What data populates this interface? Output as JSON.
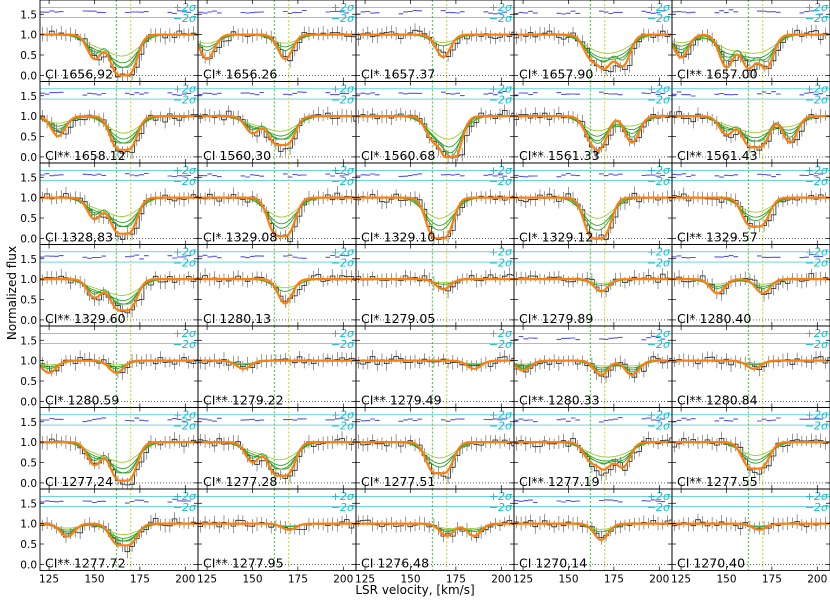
{
  "figure": {
    "ylabel": "Normalized flux",
    "xlabel": "LSR velocity, [km/s]"
  },
  "chart_data": {
    "type": "line",
    "layout": "small-multiples grid, 7 rows x 5 columns",
    "xlim": [
      120,
      207
    ],
    "ylim": [
      -0.15,
      1.85
    ],
    "x_ticks": [
      125,
      150,
      175,
      200
    ],
    "y_ticks": [
      0.0,
      0.5,
      1.0,
      1.5
    ],
    "y_tick_labels": [
      "0.0",
      "0.5",
      "1.0",
      "1.5"
    ],
    "sigma_labels": [
      "+2σ",
      "−2σ"
    ],
    "reference_velocities": [
      162,
      170
    ],
    "colors": {
      "data": "#222222",
      "errorbar": "#555555",
      "total_model": "#ff7f0e",
      "components": "#2ca02c",
      "components_light": "#9acd32",
      "residuals": "#5555ee",
      "sigma_band": "#17becf",
      "ref_line_1": "#2ca02c",
      "ref_line_2": "#bcbd22"
    },
    "panels": [
      {
        "label": "CI 1656.92",
        "lines": [
          150,
          162,
          170
        ],
        "depth": 0.85
      },
      {
        "label": "CI* 1656.26",
        "lines": [
          125,
          168
        ],
        "depth": 0.6
      },
      {
        "label": "CI* 1657.37",
        "lines": [
          168
        ],
        "depth": 0.55
      },
      {
        "label": "CI* 1657.90",
        "lines": [
          162,
          170,
          180
        ],
        "depth": 0.75
      },
      {
        "label": "CI** 1657.00",
        "lines": [
          125,
          150,
          162,
          172
        ],
        "depth": 0.8
      },
      {
        "label": "CI** 1658.12",
        "lines": [
          130,
          162,
          170
        ],
        "depth": 0.7
      },
      {
        "label": "CI 1560.30",
        "lines": [
          150,
          162,
          170
        ],
        "depth": 0.6
      },
      {
        "label": "CI* 1560.68",
        "lines": [
          162,
          170,
          175
        ],
        "depth": 0.75
      },
      {
        "label": "CI** 1561.33",
        "lines": [
          162,
          168,
          185
        ],
        "depth": 0.65
      },
      {
        "label": "CI** 1561.43",
        "lines": [
          150,
          162,
          170,
          185
        ],
        "depth": 0.65
      },
      {
        "label": "CI 1328.83",
        "lines": [
          150,
          162,
          170
        ],
        "depth": 0.75
      },
      {
        "label": "CI* 1329.08",
        "lines": [
          162,
          170
        ],
        "depth": 0.8
      },
      {
        "label": "CI* 1329.10",
        "lines": [
          162,
          170
        ],
        "depth": 0.85
      },
      {
        "label": "CI* 1329.12",
        "lines": [
          162,
          170
        ],
        "depth": 0.85
      },
      {
        "label": "CI** 1329.57",
        "lines": [
          162,
          170
        ],
        "depth": 0.6
      },
      {
        "label": "CI** 1329.60",
        "lines": [
          150,
          162,
          170
        ],
        "depth": 0.65
      },
      {
        "label": "CI 1280.13",
        "lines": [
          168
        ],
        "depth": 0.6
      },
      {
        "label": "CI* 1279.05",
        "lines": [
          168
        ],
        "depth": 0.25
      },
      {
        "label": "CI* 1279.89",
        "lines": [
          168
        ],
        "depth": 0.3
      },
      {
        "label": "CI* 1280.40",
        "lines": [
          145,
          170
        ],
        "depth": 0.35
      },
      {
        "label": "CI* 1280.59",
        "lines": [
          125,
          162
        ],
        "depth": 0.3
      },
      {
        "label": "CI** 1279.22",
        "lines": [
          145
        ],
        "depth": 0.2
      },
      {
        "label": "CI** 1279.49",
        "lines": [
          185
        ],
        "depth": 0.2
      },
      {
        "label": "CI** 1280.33",
        "lines": [
          125,
          168,
          185
        ],
        "depth": 0.35
      },
      {
        "label": "CI** 1280.84",
        "lines": [
          165
        ],
        "depth": 0.2
      },
      {
        "label": "CI 1277.24",
        "lines": [
          150,
          162,
          170
        ],
        "depth": 0.8
      },
      {
        "label": "CI* 1277.28",
        "lines": [
          150,
          162,
          170
        ],
        "depth": 0.7
      },
      {
        "label": "CI* 1277.51",
        "lines": [
          162,
          170
        ],
        "depth": 0.65
      },
      {
        "label": "CI** 1277.19",
        "lines": [
          162,
          170,
          180
        ],
        "depth": 0.6
      },
      {
        "label": "CI** 1277.55",
        "lines": [
          162,
          170
        ],
        "depth": 0.55
      },
      {
        "label": "CI** 1277.72",
        "lines": [
          135,
          162,
          170
        ],
        "depth": 0.45
      },
      {
        "label": "CI** 1277.95",
        "lines": [
          170
        ],
        "depth": 0.15
      },
      {
        "label": "CI 1276.48",
        "lines": [
          170,
          185
        ],
        "depth": 0.3
      },
      {
        "label": "CI 1270.14",
        "lines": [
          168
        ],
        "depth": 0.4
      },
      {
        "label": "CI 1270.40",
        "lines": [
          168
        ],
        "depth": 0.15
      }
    ]
  }
}
